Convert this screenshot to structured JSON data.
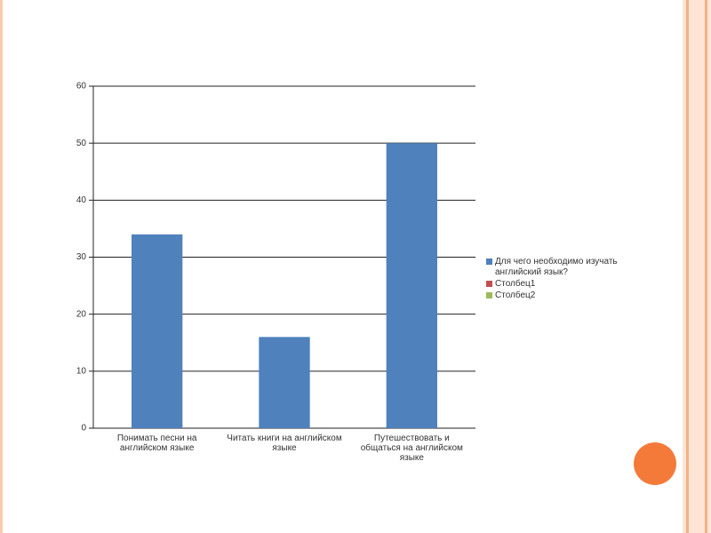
{
  "chart_data": {
    "type": "bar",
    "categories": [
      "Понимать песни на английском языке",
      "Читать книги на английском языке",
      "Путешествовать и общаться на английском языке"
    ],
    "series": [
      {
        "name": "Для  чего необходимо изучать английский язык?",
        "color": "#4f81bd",
        "values": [
          34,
          16,
          50
        ]
      },
      {
        "name": "Столбец1",
        "color": "#c0504d",
        "values": [
          null,
          null,
          null
        ]
      },
      {
        "name": "Столбец2",
        "color": "#9bbb59",
        "values": [
          null,
          null,
          null
        ]
      }
    ],
    "ylim": [
      0,
      60
    ],
    "yticks": [
      0,
      10,
      20,
      30,
      40,
      50,
      60
    ],
    "grid": true,
    "legend": "right"
  }
}
